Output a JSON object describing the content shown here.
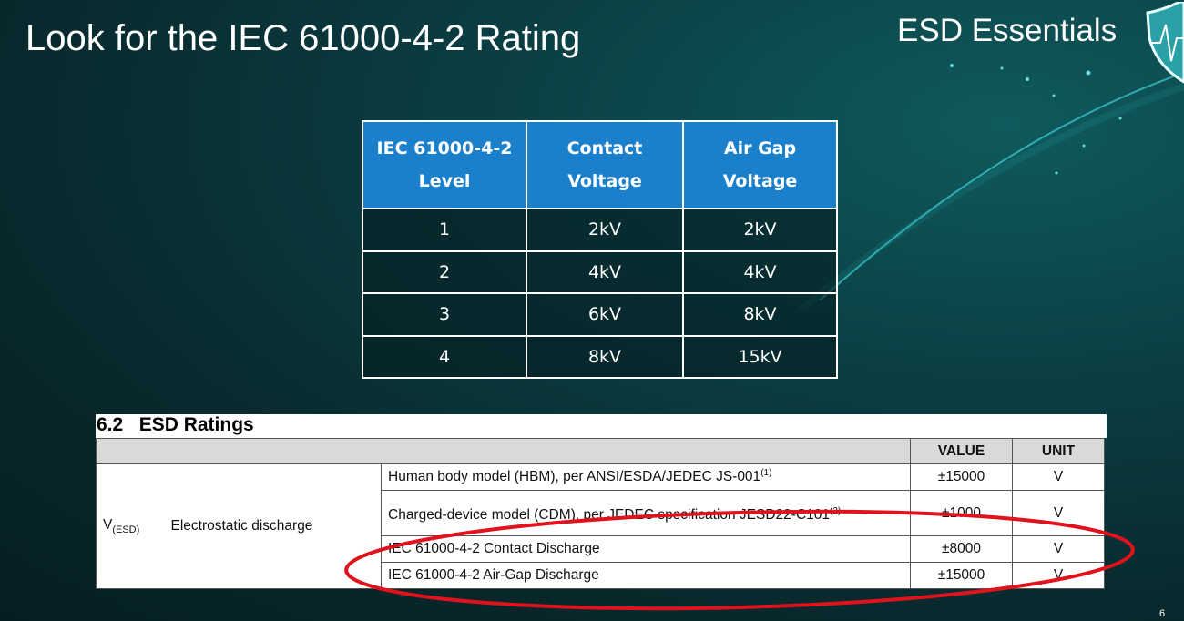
{
  "slide": {
    "title": "Look for the IEC 61000-4-2 Rating",
    "brand": "ESD Essentials",
    "page_number": "6",
    "annotation_color": "#e0121c"
  },
  "iec_table": {
    "headers": [
      [
        "IEC 61000-4-2",
        "Level"
      ],
      [
        "Contact",
        "Voltage"
      ],
      [
        "Air Gap",
        "Voltage"
      ]
    ],
    "rows": [
      [
        "1",
        "2kV",
        "2kV"
      ],
      [
        "2",
        "4kV",
        "4kV"
      ],
      [
        "3",
        "6kV",
        "8kV"
      ],
      [
        "4",
        "8kV",
        "15kV"
      ]
    ],
    "header_color": "#1a80cc"
  },
  "esd_ratings": {
    "title": "6.2   ESD Ratings",
    "headers": {
      "value": "VALUE",
      "unit": "UNIT"
    },
    "symbol": "V",
    "symbol_sub": "(ESD)",
    "parameter": "Electrostatic discharge",
    "rows": [
      {
        "condition": "Human body model (HBM), per ANSI/ESDA/JEDEC JS-001",
        "note": "(1)",
        "value": "±15000",
        "unit": "V"
      },
      {
        "condition": "Charged-device model (CDM), per JEDEC specification JESD22-C101",
        "note": "(2)",
        "value": "±1000",
        "unit": "V"
      },
      {
        "condition": "IEC 61000-4-2 Contact Discharge",
        "note": "",
        "value": "±8000",
        "unit": "V"
      },
      {
        "condition": "IEC 61000-4-2 Air-Gap Discharge",
        "note": "",
        "value": "±15000",
        "unit": "V"
      }
    ]
  }
}
